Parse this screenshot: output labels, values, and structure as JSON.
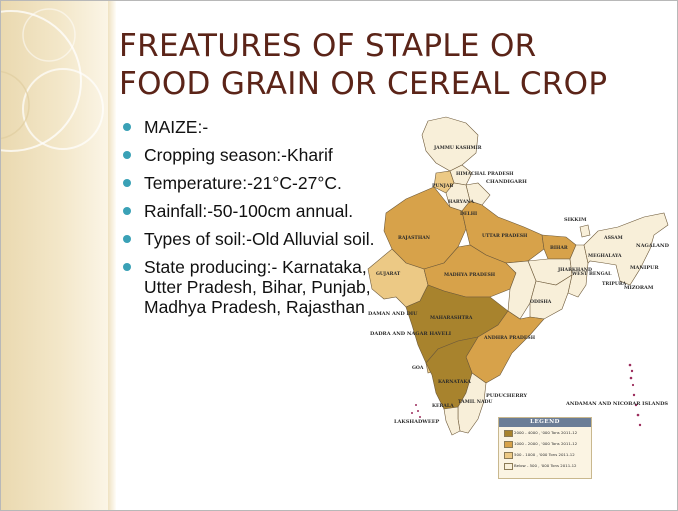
{
  "title": {
    "line1": "FREATURES OF STAPLE OR",
    "line2": "FOOD GRAIN OR CEREAL CROP"
  },
  "bullets": [
    "MAIZE:-",
    "Cropping season:-Kharif",
    "Temperature:-21°C-27°C.",
    "Rainfall:-50-100cm annual.",
    "Types of soil:-Old Alluvial soil.",
    "State producing:- Karnataka, Utter Pradesh, Bihar, Punjab, Madhya Pradesh, Rajasthan"
  ],
  "map": {
    "state_labels": {
      "jammu_kashmir": "JAMMU KASHMIR",
      "himachal_pradesh": "HIMACHAL PRADESH",
      "punjab": "PUNJAB",
      "chandigarh": "CHANDIGARH",
      "haryana": "HARYANA",
      "delhi": "DELHI",
      "rajasthan": "RAJASTHAN",
      "uttar_pradesh": "UTTAR PRADESH",
      "bihar": "BIHAR",
      "sikkim": "SIKKIM",
      "assam": "ASSAM",
      "nagaland": "NAGALAND",
      "meghalaya": "MEGHALAYA",
      "manipur": "MANIPUR",
      "tripura": "TRIPURA",
      "mizoram": "MIZORAM",
      "west_bengal": "WEST BENGAL",
      "jharkhand": "JHARKHAND",
      "gujarat": "GUJARAT",
      "madhya_pradesh": "MADHYA PRADESH",
      "odisha": "ODISHA",
      "daman_diu": "DAMAN AND DIU",
      "dadra_nagar_haveli": "DADRA AND NAGAR HAVELI",
      "maharashtra": "MAHARASHTRA",
      "andhra_pradesh": "ANDHRA PRADESH",
      "goa": "GOA",
      "karnataka": "KARNATAKA",
      "puducherry": "PUDUCHERRY",
      "kerala": "KERALA",
      "tamil_nadu": "TAMIL NADU",
      "lakshadweep": "LAKSHADWEEP",
      "andaman_nicobar": "ANDAMAN AND NICOBAR ISLANDS"
    },
    "legend": {
      "title": "LEGEND",
      "items": [
        {
          "label": "2000 - 4000 , '000 Tons 2011-12",
          "color": "#a8832d"
        },
        {
          "label": "1000 - 2000 , '000 Tons 2011-12",
          "color": "#d7a24a"
        },
        {
          "label": "500 - 1000 , '000 Tons 2011-12",
          "color": "#ecc985"
        },
        {
          "label": "Below - 500 , '000 Tons 2011-12",
          "color": "#f8efd9"
        }
      ]
    }
  },
  "colors": {
    "title": "#5b2418",
    "bullet": "#3aa1b6",
    "band": "#ead9b0"
  }
}
